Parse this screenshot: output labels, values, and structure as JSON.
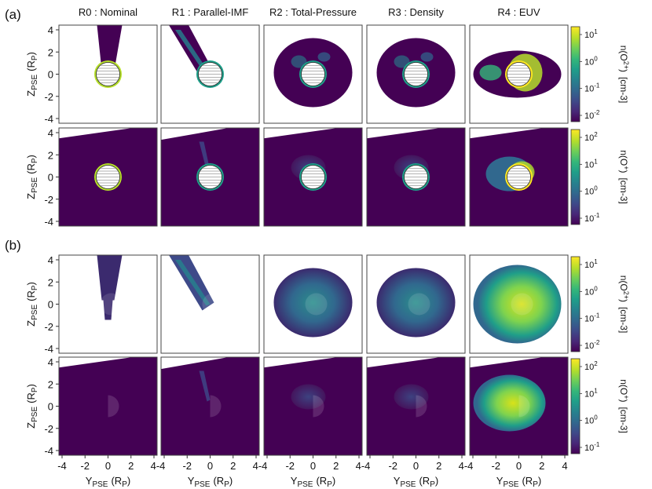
{
  "figure": {
    "part_labels": [
      "(a)",
      "(b)"
    ],
    "column_titles": [
      "R0 : Nominal",
      "R1 : Parallel-IMF",
      "R2 : Total-Pressure",
      "R3 : Density",
      "R4 : EUV"
    ],
    "y_axis_label": {
      "main": "Z",
      "sub": "PSE",
      "unit_open": "(R",
      "unit_sub": "P",
      "unit_close": ")"
    },
    "x_axis_label": {
      "main": "Y",
      "sub": "PSE",
      "unit_open": "(R",
      "unit_sub": "P",
      "unit_close": ")"
    },
    "y_ticks": [
      "4",
      "2",
      "0",
      "-2",
      "-4"
    ],
    "x_ticks": [
      "-4",
      "-2",
      "0",
      "2",
      "4"
    ],
    "x_tick_left_last": "4-4",
    "colorbars": [
      {
        "id": "a-top",
        "label_main": "n(O",
        "label_sub": "2+",
        "label_close": ")",
        "unit": "[cm-3]",
        "ticks": [
          "10^1",
          "10^0",
          "10^-1",
          "10^-2"
        ]
      },
      {
        "id": "a-bottom",
        "label_main": "n(O",
        "label_sub": "+",
        "label_close": ")",
        "unit": "[cm-3]",
        "ticks": [
          "10^2",
          "10^1",
          "10^0",
          "10^-1"
        ]
      },
      {
        "id": "b-top",
        "label_main": "n(O",
        "label_sub": "2+",
        "label_close": ")",
        "unit": "[cm-3]",
        "ticks": [
          "10^1",
          "10^0",
          "10^-1",
          "10^-2"
        ]
      },
      {
        "id": "b-bottom",
        "label_main": "n(O",
        "label_sub": "+",
        "label_close": ")",
        "unit": "[cm-3]",
        "ticks": [
          "10^2",
          "10^1",
          "10^0",
          "10^-1"
        ]
      }
    ],
    "colors": {
      "background_dark": "#440154",
      "mid": "#21918c",
      "bright": "#fde725",
      "viridis": [
        "#440154",
        "#482878",
        "#3e4a89",
        "#31688e",
        "#26828e",
        "#1f9e89",
        "#35b779",
        "#6ece58",
        "#b5de2b",
        "#fde725"
      ]
    }
  }
}
